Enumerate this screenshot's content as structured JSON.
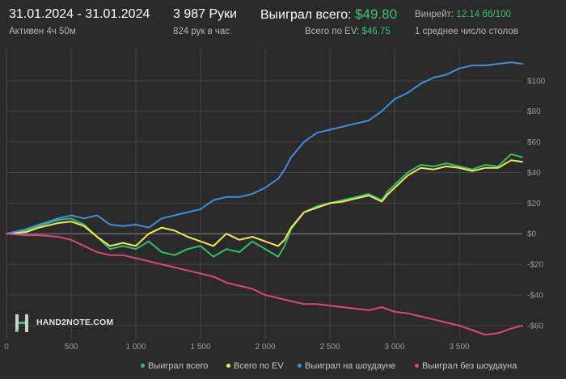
{
  "header": {
    "date_range": "31.01.2024 - 31.01.2024",
    "active_time": "Активен 4ч 50м",
    "hands": "3 987 Руки",
    "hands_per_hour": "824 рук в час",
    "won_total_label": "Выиграл всего:",
    "won_total_value": "$49.80",
    "ev_label": "Всего по EV:",
    "ev_value": "$46.75",
    "winrate_label": "Винрейт:",
    "winrate_value": "12.14 бб/100",
    "avg_tables": "1 среднее число столов"
  },
  "logo": {
    "text": "HAND2NOTE.COM"
  },
  "colors": {
    "background": "#2a2a2a",
    "grid": "#444444",
    "zero_line": "#8a8a8a",
    "won_total": "#2fbf71",
    "ev": "#f5e94a",
    "showdown": "#3d8fe0",
    "non_showdown": "#e0447c"
  },
  "chart_data": {
    "type": "line",
    "xlabel": "",
    "ylabel": "",
    "xlim": [
      0,
      3987
    ],
    "ylim": [
      -68,
      120
    ],
    "x_ticks": [
      0,
      500,
      1000,
      1500,
      2000,
      2500,
      3000,
      3500
    ],
    "x_tick_labels": [
      "0",
      "500",
      "1 000",
      "1 500",
      "2 000",
      "2 500",
      "3 000",
      "3 500"
    ],
    "y_ticks": [
      100,
      80,
      60,
      40,
      20,
      0,
      -20,
      -40,
      -60
    ],
    "y_tick_labels": [
      "$100",
      "$80",
      "$60",
      "$40",
      "$20",
      "$0",
      "-$20",
      "-$40",
      "-$60"
    ],
    "grid": true,
    "legend_position": "bottom",
    "series": [
      {
        "name": "Выиграл всего",
        "color": "#2fbf71",
        "points": [
          [
            0,
            0
          ],
          [
            150,
            2
          ],
          [
            250,
            5
          ],
          [
            400,
            9
          ],
          [
            500,
            10
          ],
          [
            600,
            6
          ],
          [
            700,
            -2
          ],
          [
            800,
            -10
          ],
          [
            900,
            -8
          ],
          [
            1000,
            -10
          ],
          [
            1100,
            -5
          ],
          [
            1200,
            -12
          ],
          [
            1300,
            -14
          ],
          [
            1400,
            -10
          ],
          [
            1500,
            -8
          ],
          [
            1600,
            -15
          ],
          [
            1700,
            -10
          ],
          [
            1800,
            -12
          ],
          [
            1900,
            -5
          ],
          [
            2000,
            -10
          ],
          [
            2100,
            -15
          ],
          [
            2150,
            -8
          ],
          [
            2200,
            3
          ],
          [
            2300,
            14
          ],
          [
            2400,
            18
          ],
          [
            2500,
            20
          ],
          [
            2600,
            22
          ],
          [
            2700,
            24
          ],
          [
            2800,
            26
          ],
          [
            2900,
            22
          ],
          [
            2950,
            28
          ],
          [
            3000,
            32
          ],
          [
            3100,
            40
          ],
          [
            3200,
            45
          ],
          [
            3300,
            44
          ],
          [
            3400,
            46
          ],
          [
            3500,
            44
          ],
          [
            3600,
            42
          ],
          [
            3700,
            45
          ],
          [
            3800,
            44
          ],
          [
            3900,
            52
          ],
          [
            3987,
            50
          ]
        ]
      },
      {
        "name": "Всего по EV",
        "color": "#f5e94a",
        "points": [
          [
            0,
            0
          ],
          [
            150,
            1
          ],
          [
            250,
            4
          ],
          [
            400,
            7
          ],
          [
            500,
            8
          ],
          [
            600,
            5
          ],
          [
            700,
            -2
          ],
          [
            800,
            -8
          ],
          [
            900,
            -6
          ],
          [
            1000,
            -8
          ],
          [
            1100,
            0
          ],
          [
            1200,
            4
          ],
          [
            1300,
            2
          ],
          [
            1400,
            -2
          ],
          [
            1500,
            -5
          ],
          [
            1600,
            -8
          ],
          [
            1700,
            0
          ],
          [
            1800,
            -4
          ],
          [
            1900,
            -2
          ],
          [
            2000,
            -5
          ],
          [
            2100,
            -8
          ],
          [
            2150,
            -4
          ],
          [
            2200,
            4
          ],
          [
            2300,
            14
          ],
          [
            2400,
            17
          ],
          [
            2500,
            20
          ],
          [
            2600,
            21
          ],
          [
            2700,
            23
          ],
          [
            2800,
            25
          ],
          [
            2900,
            21
          ],
          [
            2950,
            26
          ],
          [
            3000,
            30
          ],
          [
            3100,
            38
          ],
          [
            3200,
            43
          ],
          [
            3300,
            42
          ],
          [
            3400,
            44
          ],
          [
            3500,
            43
          ],
          [
            3600,
            41
          ],
          [
            3700,
            43
          ],
          [
            3800,
            43
          ],
          [
            3900,
            48
          ],
          [
            3987,
            47
          ]
        ]
      },
      {
        "name": "Выиграл на шоудауне",
        "color": "#3d8fe0",
        "points": [
          [
            0,
            0
          ],
          [
            150,
            3
          ],
          [
            250,
            6
          ],
          [
            400,
            10
          ],
          [
            500,
            12
          ],
          [
            600,
            10
          ],
          [
            700,
            12
          ],
          [
            800,
            6
          ],
          [
            900,
            5
          ],
          [
            1000,
            6
          ],
          [
            1100,
            4
          ],
          [
            1200,
            10
          ],
          [
            1300,
            12
          ],
          [
            1400,
            14
          ],
          [
            1500,
            16
          ],
          [
            1600,
            22
          ],
          [
            1700,
            24
          ],
          [
            1800,
            24
          ],
          [
            1900,
            26
          ],
          [
            2000,
            30
          ],
          [
            2100,
            36
          ],
          [
            2150,
            42
          ],
          [
            2200,
            50
          ],
          [
            2300,
            60
          ],
          [
            2400,
            66
          ],
          [
            2500,
            68
          ],
          [
            2600,
            70
          ],
          [
            2700,
            72
          ],
          [
            2800,
            74
          ],
          [
            2900,
            80
          ],
          [
            3000,
            88
          ],
          [
            3100,
            92
          ],
          [
            3200,
            98
          ],
          [
            3300,
            102
          ],
          [
            3400,
            104
          ],
          [
            3500,
            108
          ],
          [
            3600,
            110
          ],
          [
            3700,
            110
          ],
          [
            3800,
            111
          ],
          [
            3900,
            112
          ],
          [
            3987,
            111
          ]
        ]
      },
      {
        "name": "Выиграл без шоудауна",
        "color": "#e0447c",
        "points": [
          [
            0,
            0
          ],
          [
            150,
            -1
          ],
          [
            250,
            -1
          ],
          [
            400,
            -2
          ],
          [
            500,
            -4
          ],
          [
            600,
            -8
          ],
          [
            700,
            -12
          ],
          [
            800,
            -14
          ],
          [
            900,
            -14
          ],
          [
            1000,
            -16
          ],
          [
            1100,
            -18
          ],
          [
            1200,
            -20
          ],
          [
            1300,
            -22
          ],
          [
            1400,
            -24
          ],
          [
            1500,
            -26
          ],
          [
            1600,
            -28
          ],
          [
            1700,
            -32
          ],
          [
            1800,
            -34
          ],
          [
            1900,
            -36
          ],
          [
            2000,
            -40
          ],
          [
            2100,
            -42
          ],
          [
            2200,
            -44
          ],
          [
            2300,
            -46
          ],
          [
            2400,
            -46
          ],
          [
            2500,
            -47
          ],
          [
            2600,
            -48
          ],
          [
            2700,
            -49
          ],
          [
            2800,
            -50
          ],
          [
            2900,
            -48
          ],
          [
            3000,
            -51
          ],
          [
            3100,
            -52
          ],
          [
            3200,
            -54
          ],
          [
            3300,
            -56
          ],
          [
            3400,
            -58
          ],
          [
            3500,
            -60
          ],
          [
            3600,
            -63
          ],
          [
            3700,
            -66
          ],
          [
            3800,
            -65
          ],
          [
            3900,
            -62
          ],
          [
            3987,
            -60
          ]
        ]
      }
    ]
  }
}
